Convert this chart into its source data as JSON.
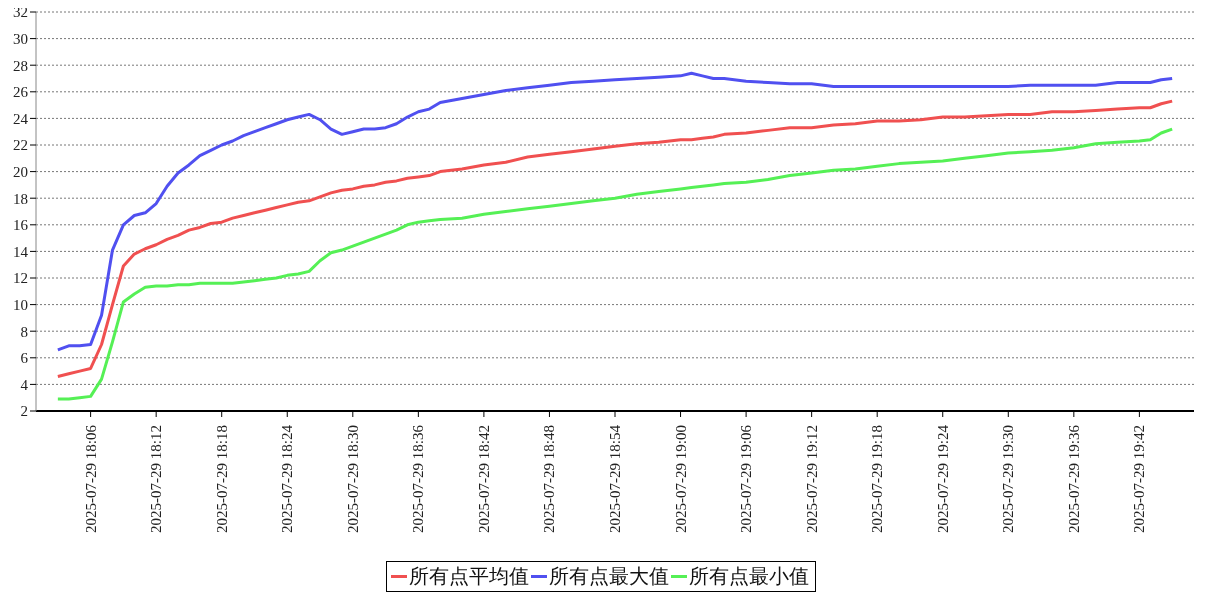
{
  "chart_data": {
    "type": "line",
    "x": [
      "2025-07-29T18:03",
      "2025-07-29T18:04",
      "2025-07-29T18:05",
      "2025-07-29T18:06",
      "2025-07-29T18:07",
      "2025-07-29T18:08",
      "2025-07-29T18:09",
      "2025-07-29T18:10",
      "2025-07-29T18:11",
      "2025-07-29T18:12",
      "2025-07-29T18:13",
      "2025-07-29T18:14",
      "2025-07-29T18:15",
      "2025-07-29T18:16",
      "2025-07-29T18:17",
      "2025-07-29T18:18",
      "2025-07-29T18:19",
      "2025-07-29T18:20",
      "2025-07-29T18:21",
      "2025-07-29T18:22",
      "2025-07-29T18:23",
      "2025-07-29T18:24",
      "2025-07-29T18:25",
      "2025-07-29T18:26",
      "2025-07-29T18:27",
      "2025-07-29T18:28",
      "2025-07-29T18:29",
      "2025-07-29T18:30",
      "2025-07-29T18:31",
      "2025-07-29T18:32",
      "2025-07-29T18:33",
      "2025-07-29T18:34",
      "2025-07-29T18:35",
      "2025-07-29T18:36",
      "2025-07-29T18:37",
      "2025-07-29T18:38",
      "2025-07-29T18:40",
      "2025-07-29T18:42",
      "2025-07-29T18:44",
      "2025-07-29T18:46",
      "2025-07-29T18:48",
      "2025-07-29T18:50",
      "2025-07-29T18:52",
      "2025-07-29T18:54",
      "2025-07-29T18:56",
      "2025-07-29T18:58",
      "2025-07-29T19:00",
      "2025-07-29T19:01",
      "2025-07-29T19:02",
      "2025-07-29T19:03",
      "2025-07-29T19:04",
      "2025-07-29T19:06",
      "2025-07-29T19:08",
      "2025-07-29T19:10",
      "2025-07-29T19:12",
      "2025-07-29T19:14",
      "2025-07-29T19:16",
      "2025-07-29T19:18",
      "2025-07-29T19:20",
      "2025-07-29T19:22",
      "2025-07-29T19:24",
      "2025-07-29T19:26",
      "2025-07-29T19:28",
      "2025-07-29T19:30",
      "2025-07-29T19:32",
      "2025-07-29T19:34",
      "2025-07-29T19:36",
      "2025-07-29T19:38",
      "2025-07-29T19:40",
      "2025-07-29T19:42",
      "2025-07-29T19:43",
      "2025-07-29T19:44",
      "2025-07-29T19:45"
    ],
    "series": [
      {
        "name": "所有点平均值",
        "color": "#f05050",
        "values": [
          4.6,
          4.8,
          5.0,
          5.2,
          7.0,
          10.0,
          12.9,
          13.8,
          14.2,
          14.5,
          14.9,
          15.2,
          15.6,
          15.8,
          16.1,
          16.2,
          16.5,
          16.7,
          16.9,
          17.1,
          17.3,
          17.5,
          17.7,
          17.8,
          18.1,
          18.4,
          18.6,
          18.7,
          18.9,
          19.0,
          19.2,
          19.3,
          19.5,
          19.6,
          19.7,
          20.0,
          20.2,
          20.5,
          20.7,
          21.1,
          21.3,
          21.5,
          21.7,
          21.9,
          22.1,
          22.2,
          22.4,
          22.4,
          22.5,
          22.6,
          22.8,
          22.9,
          23.1,
          23.3,
          23.3,
          23.5,
          23.6,
          23.8,
          23.8,
          23.9,
          24.1,
          24.1,
          24.2,
          24.3,
          24.3,
          24.5,
          24.5,
          24.6,
          24.7,
          24.8,
          24.8,
          25.1,
          25.3
        ]
      },
      {
        "name": "所有点最大值",
        "color": "#5050f0",
        "values": [
          6.6,
          6.9,
          6.9,
          7.0,
          9.2,
          14.1,
          16.0,
          16.7,
          16.9,
          17.6,
          18.9,
          19.9,
          20.5,
          21.2,
          21.6,
          22.0,
          22.3,
          22.7,
          23.0,
          23.3,
          23.6,
          23.9,
          24.1,
          24.3,
          23.9,
          23.2,
          22.8,
          23.0,
          23.2,
          23.2,
          23.3,
          23.6,
          24.1,
          24.5,
          24.7,
          25.2,
          25.5,
          25.8,
          26.1,
          26.3,
          26.5,
          26.7,
          26.8,
          26.9,
          27.0,
          27.1,
          27.2,
          27.4,
          27.2,
          27.0,
          27.0,
          26.8,
          26.7,
          26.6,
          26.6,
          26.4,
          26.4,
          26.4,
          26.4,
          26.4,
          26.4,
          26.4,
          26.4,
          26.4,
          26.5,
          26.5,
          26.5,
          26.5,
          26.7,
          26.7,
          26.7,
          26.9,
          27.0
        ]
      },
      {
        "name": "所有点最小值",
        "color": "#55f055",
        "values": [
          2.9,
          2.9,
          3.0,
          3.1,
          4.4,
          7.2,
          10.2,
          10.8,
          11.3,
          11.4,
          11.4,
          11.5,
          11.5,
          11.6,
          11.6,
          11.6,
          11.6,
          11.7,
          11.8,
          11.9,
          12.0,
          12.2,
          12.3,
          12.5,
          13.3,
          13.9,
          14.1,
          14.4,
          14.7,
          15.0,
          15.3,
          15.6,
          16.0,
          16.2,
          16.3,
          16.4,
          16.5,
          16.8,
          17.0,
          17.2,
          17.4,
          17.6,
          17.8,
          18.0,
          18.3,
          18.5,
          18.7,
          18.8,
          18.9,
          19.0,
          19.1,
          19.2,
          19.4,
          19.7,
          19.9,
          20.1,
          20.2,
          20.4,
          20.6,
          20.7,
          20.8,
          21.0,
          21.2,
          21.4,
          21.5,
          21.6,
          21.8,
          22.1,
          22.2,
          22.3,
          22.4,
          22.9,
          23.2
        ]
      }
    ],
    "xlim": [
      "2025-07-29T18:01",
      "2025-07-29T19:47"
    ],
    "xticks": [
      {
        "value": "2025-07-29T18:06",
        "label": "2025-07-29 18:06"
      },
      {
        "value": "2025-07-29T18:12",
        "label": "2025-07-29 18:12"
      },
      {
        "value": "2025-07-29T18:18",
        "label": "2025-07-29 18:18"
      },
      {
        "value": "2025-07-29T18:24",
        "label": "2025-07-29 18:24"
      },
      {
        "value": "2025-07-29T18:30",
        "label": "2025-07-29 18:30"
      },
      {
        "value": "2025-07-29T18:36",
        "label": "2025-07-29 18:36"
      },
      {
        "value": "2025-07-29T18:42",
        "label": "2025-07-29 18:42"
      },
      {
        "value": "2025-07-29T18:48",
        "label": "2025-07-29 18:48"
      },
      {
        "value": "2025-07-29T18:54",
        "label": "2025-07-29 18:54"
      },
      {
        "value": "2025-07-29T19:00",
        "label": "2025-07-29 19:00"
      },
      {
        "value": "2025-07-29T19:06",
        "label": "2025-07-29 19:06"
      },
      {
        "value": "2025-07-29T19:12",
        "label": "2025-07-29 19:12"
      },
      {
        "value": "2025-07-29T19:18",
        "label": "2025-07-29 19:18"
      },
      {
        "value": "2025-07-29T19:24",
        "label": "2025-07-29 19:24"
      },
      {
        "value": "2025-07-29T19:30",
        "label": "2025-07-29 19:30"
      },
      {
        "value": "2025-07-29T19:36",
        "label": "2025-07-29 19:36"
      },
      {
        "value": "2025-07-29T19:42",
        "label": "2025-07-29 19:42"
      }
    ],
    "ylim": [
      2,
      32
    ],
    "yticks": [
      2,
      4,
      6,
      8,
      10,
      12,
      14,
      16,
      18,
      20,
      22,
      24,
      26,
      28,
      30,
      32
    ],
    "grid": "y",
    "legend": "bottom"
  }
}
